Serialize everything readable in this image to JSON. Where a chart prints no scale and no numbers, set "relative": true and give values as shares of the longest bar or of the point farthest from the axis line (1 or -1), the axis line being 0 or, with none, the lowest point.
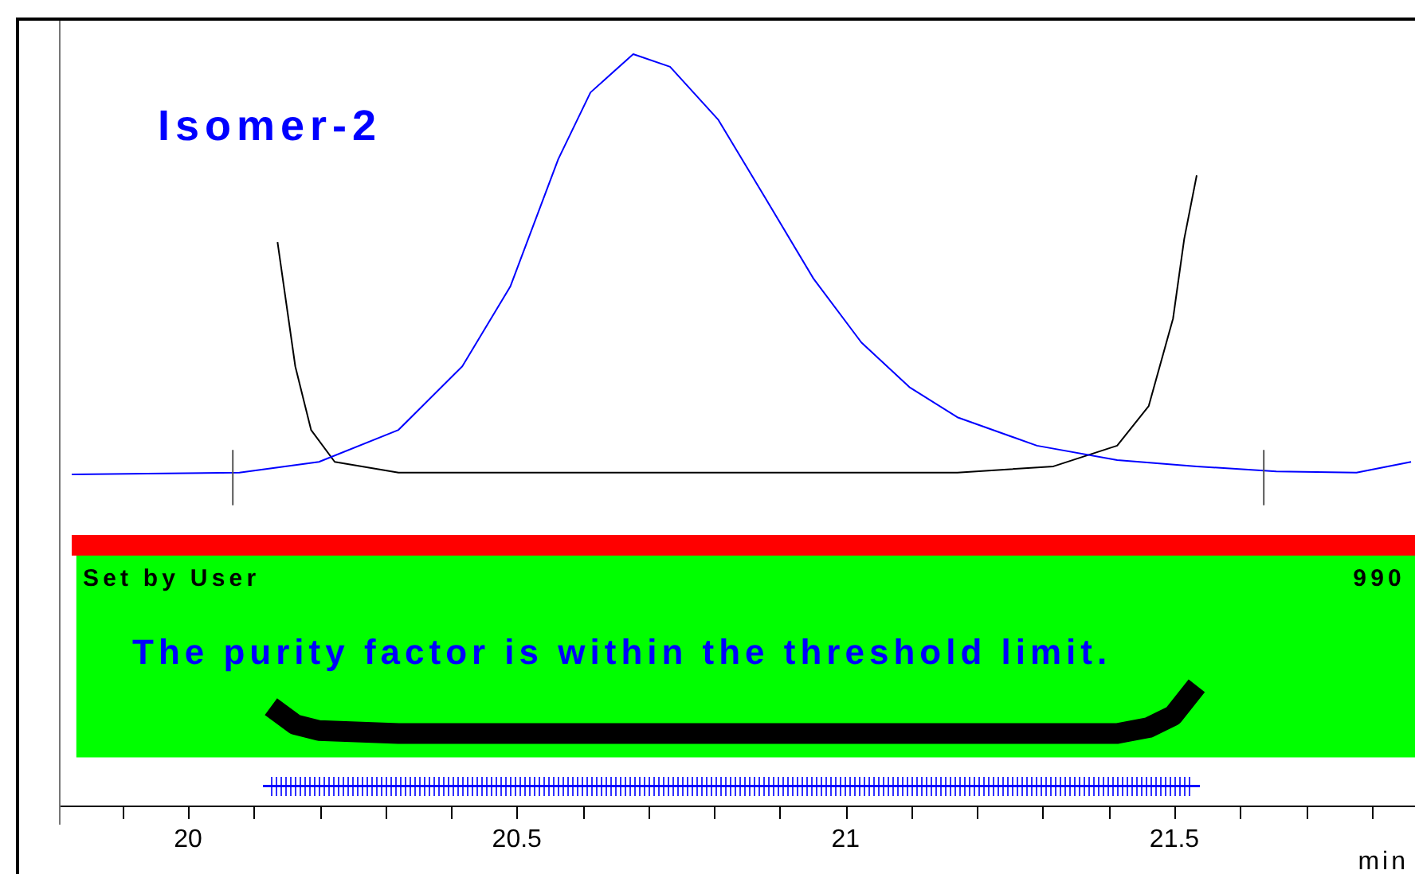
{
  "chart_data": [
    {
      "type": "line",
      "relative": true,
      "tick_labels": false,
      "xlim": [
        19.806,
        21.866
      ],
      "annotations": [
        "Isomer-2"
      ],
      "series": [
        {
          "color": "#555555",
          "x": [
            20.068,
            20.068
          ],
          "values": [
            0.12,
            0
          ]
        },
        {
          "color": "#555555",
          "x": [
            21.636,
            21.636
          ],
          "values": [
            0.12,
            0
          ]
        },
        {
          "color": "#0000ff",
          "x": [
            19.823,
            20.078,
            20.199,
            20.32,
            20.417,
            20.49,
            20.563,
            20.612,
            20.677,
            20.733,
            20.806,
            20.879,
            20.951,
            21.024,
            21.097,
            21.17,
            21.291,
            21.413,
            21.534,
            21.655,
            21.777,
            21.86
          ],
          "values": [
            0.067,
            0.071,
            0.095,
            0.166,
            0.307,
            0.484,
            0.767,
            0.915,
            1,
            0.972,
            0.855,
            0.678,
            0.502,
            0.36,
            0.261,
            0.194,
            0.131,
            0.099,
            0.085,
            0.074,
            0.071,
            0.095
          ]
        },
        {
          "color": "#000000",
          "x": [
            20.136,
            20.163,
            20.187,
            20.223,
            20.32,
            20.7,
            21.17,
            21.316,
            21.413,
            21.461,
            21.498,
            21.515,
            21.534
          ],
          "values": [
            0.583,
            0.307,
            0.166,
            0.095,
            0.071,
            0.071,
            0.071,
            0.085,
            0.131,
            0.219,
            0.413,
            0.59,
            0.731
          ]
        }
      ]
    },
    {
      "type": "line",
      "relative": true,
      "xlim": [
        19.806,
        21.866
      ],
      "xlabel": "min",
      "xticks": [
        {
          "value": 19.9,
          "label": null
        },
        20,
        {
          "value": 20.1,
          "label": null
        },
        {
          "value": 20.2,
          "label": null
        },
        {
          "value": 20.3,
          "label": null
        },
        {
          "value": 20.4,
          "label": null
        },
        20.5,
        {
          "value": 20.6,
          "label": null
        },
        {
          "value": 20.7,
          "label": null
        },
        {
          "value": 20.8,
          "label": null
        },
        {
          "value": 20.9,
          "label": null
        },
        21,
        {
          "value": 21.1,
          "label": null
        },
        {
          "value": 21.2,
          "label": null
        },
        {
          "value": 21.3,
          "label": null
        },
        {
          "value": 21.4,
          "label": null
        },
        21.5,
        {
          "value": 21.6,
          "label": null
        },
        {
          "value": 21.7,
          "label": null
        },
        {
          "value": 21.8,
          "label": null
        }
      ],
      "annotations": [
        "Set by User",
        "990",
        "The purity factor is within the threshold limit."
      ],
      "bands": [
        {
          "axis": "x",
          "from": 19.83,
          "to": 21.866,
          "color": "#00ff00"
        }
      ],
      "series": [
        {
          "color": "#000000",
          "x": [
            20.126,
            20.163,
            20.199,
            20.32,
            20.927,
            21.413,
            21.461,
            21.498,
            21.534
          ],
          "values": [
            0.825,
            0.675,
            0.625,
            0.6,
            0.6,
            0.6,
            0.65,
            0.75,
            1
          ]
        }
      ]
    }
  ]
}
